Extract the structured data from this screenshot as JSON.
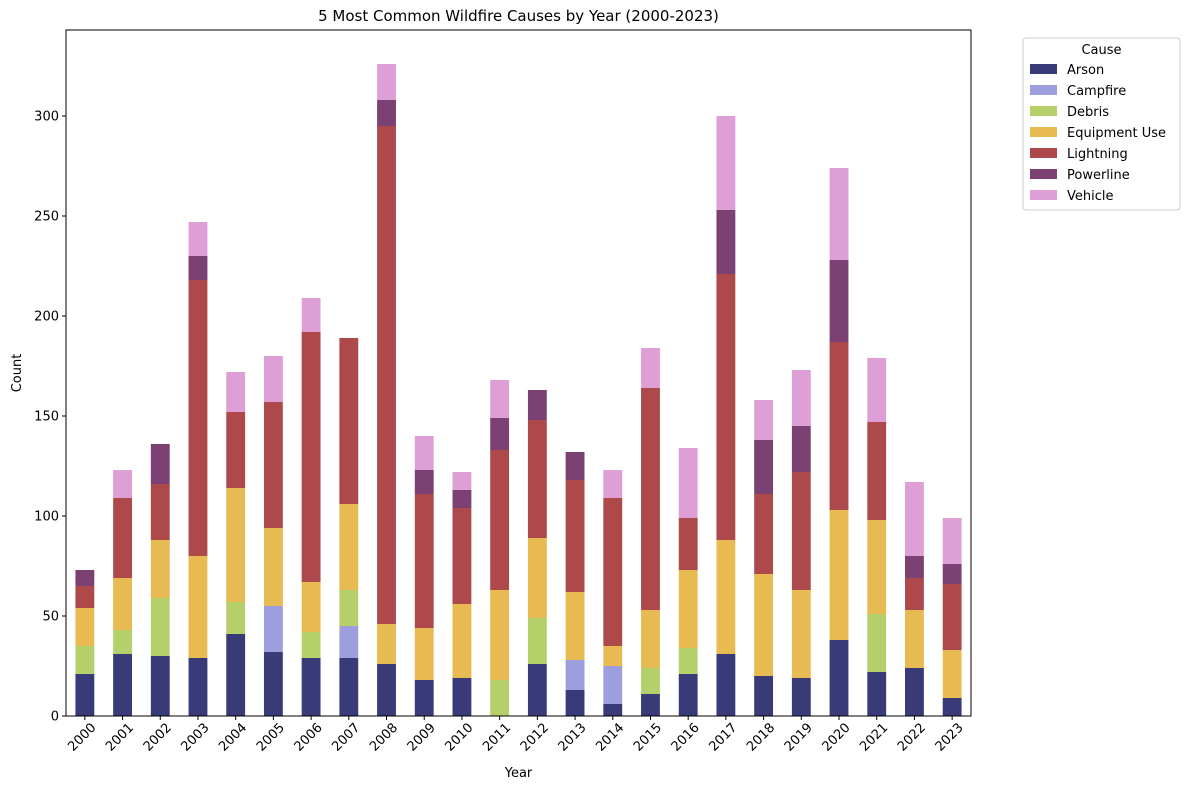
{
  "chart_data": {
    "type": "bar",
    "stacked": true,
    "title": "5 Most Common Wildfire Causes by Year (2000-2023)",
    "xlabel": "Year",
    "ylabel": "Count",
    "ylim": [
      0,
      343
    ],
    "yticks": [
      0,
      50,
      100,
      150,
      200,
      250,
      300
    ],
    "grid": false,
    "legend": {
      "title": "Cause",
      "placement": "outside-top-right"
    },
    "categories": [
      "2000",
      "2001",
      "2002",
      "2003",
      "2004",
      "2005",
      "2006",
      "2007",
      "2008",
      "2009",
      "2010",
      "2011",
      "2012",
      "2013",
      "2014",
      "2015",
      "2016",
      "2017",
      "2018",
      "2019",
      "2020",
      "2021",
      "2022",
      "2023"
    ],
    "series": [
      {
        "name": "Arson",
        "color": "#393b79",
        "values": [
          21,
          31,
          30,
          29,
          41,
          32,
          29,
          29,
          26,
          18,
          19,
          0,
          26,
          13,
          6,
          11,
          21,
          31,
          20,
          19,
          38,
          22,
          24,
          9
        ]
      },
      {
        "name": "Campfire",
        "color": "#9c9ede",
        "values": [
          0,
          0,
          0,
          0,
          0,
          23,
          0,
          16,
          0,
          0,
          0,
          0,
          0,
          15,
          19,
          0,
          0,
          0,
          0,
          0,
          0,
          0,
          0,
          0
        ]
      },
      {
        "name": "Debris",
        "color": "#b5cf6b",
        "values": [
          14,
          12,
          29,
          0,
          16,
          0,
          13,
          18,
          0,
          0,
          0,
          18,
          23,
          0,
          0,
          13,
          13,
          0,
          0,
          0,
          0,
          29,
          0,
          0
        ]
      },
      {
        "name": "Equipment Use",
        "color": "#e7ba52",
        "values": [
          19,
          26,
          29,
          51,
          57,
          39,
          25,
          43,
          20,
          26,
          37,
          45,
          40,
          34,
          10,
          29,
          39,
          57,
          51,
          44,
          65,
          47,
          29,
          24
        ]
      },
      {
        "name": "Lightning",
        "color": "#ad494a",
        "values": [
          11,
          40,
          28,
          138,
          38,
          63,
          125,
          83,
          249,
          67,
          48,
          70,
          59,
          56,
          74,
          111,
          26,
          133,
          40,
          59,
          84,
          49,
          16,
          33
        ]
      },
      {
        "name": "Powerline",
        "color": "#7b4173",
        "values": [
          8,
          0,
          20,
          12,
          0,
          0,
          0,
          0,
          13,
          12,
          9,
          16,
          15,
          14,
          0,
          0,
          0,
          32,
          27,
          23,
          41,
          0,
          11,
          10
        ]
      },
      {
        "name": "Vehicle",
        "color": "#de9ed6",
        "values": [
          0,
          14,
          0,
          17,
          20,
          23,
          17,
          0,
          18,
          17,
          9,
          19,
          0,
          0,
          14,
          20,
          35,
          47,
          20,
          28,
          46,
          32,
          37,
          23
        ]
      }
    ]
  }
}
